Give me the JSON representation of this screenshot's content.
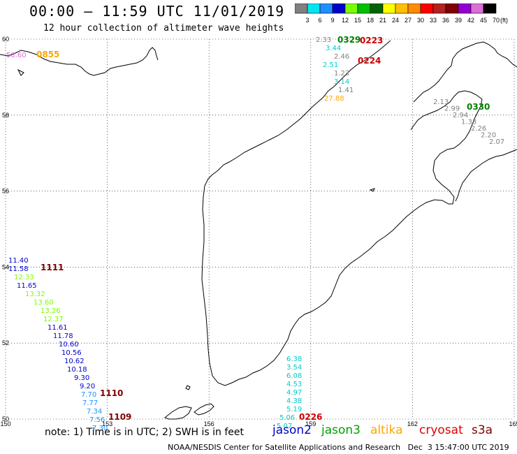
{
  "header": {
    "title": "00:00 – 11:59 UTC 11/01/2019",
    "subtitle": "12 hour collection of altimeter wave heights"
  },
  "colorbar": {
    "unit": "(ft)",
    "bins": [
      {
        "label": "3",
        "color": "#808080"
      },
      {
        "label": "6",
        "color": "#00e5ee"
      },
      {
        "label": "9",
        "color": "#1e90ff"
      },
      {
        "label": "12",
        "color": "#0000cd"
      },
      {
        "label": "15",
        "color": "#7cfc00"
      },
      {
        "label": "18",
        "color": "#00c000"
      },
      {
        "label": "21",
        "color": "#006400"
      },
      {
        "label": "24",
        "color": "#ffff00"
      },
      {
        "label": "27",
        "color": "#ffc000"
      },
      {
        "label": "30",
        "color": "#ff8c00"
      },
      {
        "label": "33",
        "color": "#ff0000"
      },
      {
        "label": "36",
        "color": "#b22222"
      },
      {
        "label": "39",
        "color": "#800000"
      },
      {
        "label": "42",
        "color": "#9400d3"
      },
      {
        "label": "45",
        "color": "#da70d6"
      },
      {
        "label": "70",
        "color": "#000000"
      }
    ]
  },
  "map": {
    "lat_labels": [
      "60",
      "58",
      "56",
      "54",
      "52",
      "50"
    ],
    "lon_labels": [
      "150",
      "153",
      "156",
      "159",
      "162",
      "165"
    ],
    "lat_range": [
      50,
      60
    ],
    "lon_range": [
      150,
      165
    ]
  },
  "tracks": [
    {
      "id": "t1111",
      "time_label": "1111",
      "time_color": "#800000",
      "readings": [
        {
          "v": "11.40",
          "color": "#0000cd"
        },
        {
          "v": "11.58",
          "color": "#0000cd"
        },
        {
          "v": "12.33",
          "color": "#7cfc00"
        },
        {
          "v": "11.65",
          "color": "#0000cd"
        },
        {
          "v": "13.32",
          "color": "#7cfc00"
        },
        {
          "v": "13.60",
          "color": "#7cfc00"
        },
        {
          "v": "13.26",
          "color": "#7cfc00"
        },
        {
          "v": "12.37",
          "color": "#7cfc00"
        },
        {
          "v": "11.61",
          "color": "#0000cd"
        },
        {
          "v": "11.78",
          "color": "#0000cd"
        },
        {
          "v": "10.60",
          "color": "#0000cd"
        },
        {
          "v": "10.56",
          "color": "#0000cd"
        },
        {
          "v": "10.62",
          "color": "#0000cd"
        },
        {
          "v": "10.18",
          "color": "#0000cd"
        },
        {
          "v": "9.30",
          "color": "#0000cd"
        },
        {
          "v": "9.20",
          "color": "#0000cd"
        },
        {
          "v": "7.70",
          "color": "#1e90ff"
        },
        {
          "v": "7.77",
          "color": "#1e90ff"
        },
        {
          "v": "7.34",
          "color": "#1e90ff"
        },
        {
          "v": "7.56",
          "color": "#1e90ff"
        },
        {
          "v": "7.30",
          "color": "#1e90ff"
        }
      ]
    },
    {
      "id": "t1110",
      "time_label": "1110",
      "time_color": "#800000",
      "readings": []
    },
    {
      "id": "t1109",
      "time_label": "1109",
      "time_color": "#800000",
      "readings": []
    },
    {
      "id": "t0226",
      "time_label": "0226",
      "time_color": "#cc0000",
      "readings": [
        {
          "v": "6.38",
          "color": "#00cccc"
        },
        {
          "v": "3.54",
          "color": "#00cccc"
        },
        {
          "v": "6.08",
          "color": "#00cccc"
        },
        {
          "v": "4.53",
          "color": "#00cccc"
        },
        {
          "v": "4.97",
          "color": "#00cccc"
        },
        {
          "v": "4.38",
          "color": "#00cccc"
        },
        {
          "v": "5.19",
          "color": "#00cccc"
        },
        {
          "v": "5.06",
          "color": "#00cccc"
        },
        {
          "v": "5.07",
          "color": "#00cccc"
        }
      ]
    },
    {
      "id": "t0329",
      "time_label": "0329",
      "time_color": "#008000",
      "readings": [
        {
          "v": "2.33",
          "color": "#808080"
        },
        {
          "v": "3.44",
          "color": "#00cccc"
        },
        {
          "v": "2.46",
          "color": "#808080"
        },
        {
          "v": "2.51",
          "color": "#00cccc"
        },
        {
          "v": "1.23",
          "color": "#808080"
        },
        {
          "v": "3.14",
          "color": "#00cccc"
        },
        {
          "v": "1.41",
          "color": "#808080"
        },
        {
          "v": "27.88",
          "color": "#ffa500"
        }
      ]
    },
    {
      "id": "t0223",
      "time_label": "0223",
      "time_color": "#cc0000",
      "readings": []
    },
    {
      "id": "t0224",
      "time_label": "0224",
      "time_color": "#cc0000",
      "readings": []
    },
    {
      "id": "t0330",
      "time_label": "0330",
      "time_color": "#008000",
      "readings": [
        {
          "v": "2.13",
          "color": "#808080"
        },
        {
          "v": "2.99",
          "color": "#808080"
        },
        {
          "v": "2.94",
          "color": "#808080"
        },
        {
          "v": "1.33",
          "color": "#808080"
        },
        {
          "v": "2.26",
          "color": "#808080"
        },
        {
          "v": "2.20",
          "color": "#808080"
        },
        {
          "v": "2.07",
          "color": "#808080"
        }
      ]
    },
    {
      "id": "t0855",
      "time_label": "0855",
      "time_color": "#ffa500",
      "readings": [
        {
          "v": "58.60",
          "color": "#da70d6"
        }
      ]
    }
  ],
  "footer": {
    "note": "note: 1) Time is in UTC; 2) SWH is in feet",
    "credit": "NOAA/NESDIS Center for Satellite Applications and Research   Dec  3 15:47:00 UTC 2019",
    "satellites": [
      {
        "name": "jason2",
        "color": "#0000cd"
      },
      {
        "name": "jason3",
        "color": "#00a000"
      },
      {
        "name": "altika",
        "color": "#ffa500"
      },
      {
        "name": "cryosat",
        "color": "#e00000"
      },
      {
        "name": "s3a",
        "color": "#800000"
      }
    ]
  }
}
